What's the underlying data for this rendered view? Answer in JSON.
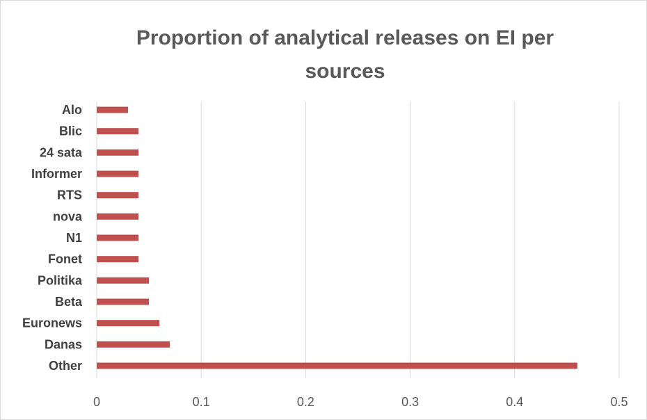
{
  "chart_data": {
    "type": "bar",
    "orientation": "horizontal",
    "title": "Proportion of analytical releases on EI per sources",
    "categories": [
      "Alo",
      "Blic",
      "24 sata",
      "Informer",
      "RTS",
      "nova",
      "N1",
      "Fonet",
      "Politika",
      "Beta",
      "Euronews",
      "Danas",
      "Other"
    ],
    "values": [
      0.03,
      0.04,
      0.04,
      0.04,
      0.04,
      0.04,
      0.04,
      0.04,
      0.05,
      0.05,
      0.06,
      0.07,
      0.46
    ],
    "xlim": [
      0,
      0.5
    ],
    "xticks": [
      "0",
      "0.1",
      "0.2",
      "0.3",
      "0.4",
      "0.5"
    ],
    "xlabel": "",
    "ylabel": "",
    "grid": "vertical",
    "legend": "none",
    "bar_color": "#c0504d",
    "grid_color": "#d9d9d9"
  }
}
